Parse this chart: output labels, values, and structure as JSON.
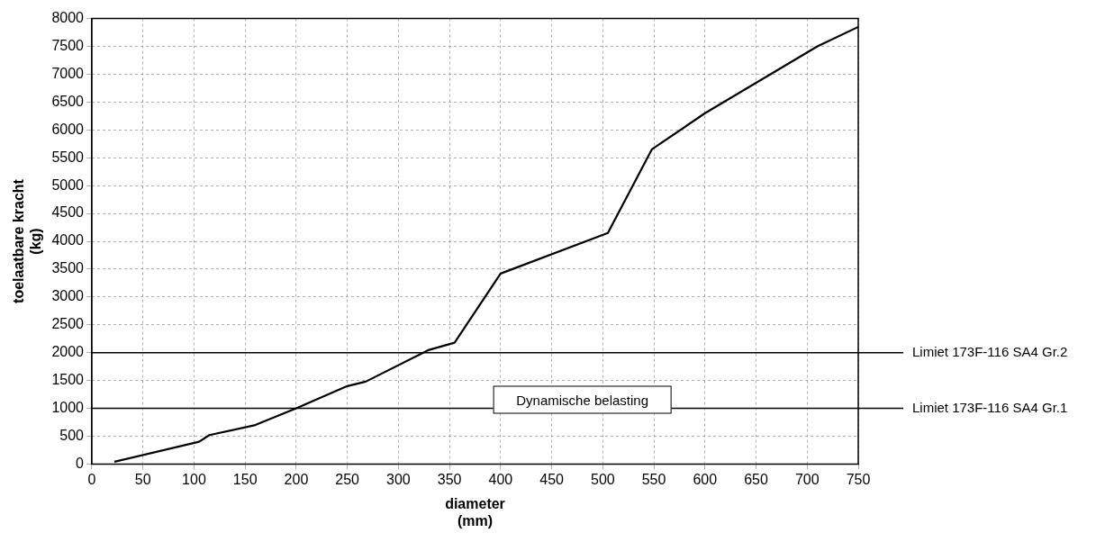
{
  "chart_data": {
    "type": "line",
    "xlabel": "diameter\n(mm)",
    "ylabel": "toelaatbare kracht\n(kg)",
    "series": [
      {
        "color": "#000000",
        "x": [
          22,
          105,
          115,
          160,
          200,
          250,
          268,
          330,
          355,
          400,
          505,
          548,
          600,
          710,
          750
        ],
        "values": [
          40,
          400,
          520,
          700,
          1000,
          1400,
          1480,
          2050,
          2180,
          3420,
          4150,
          5650,
          6300,
          7500,
          7850
        ]
      }
    ],
    "xlim": [
      0,
      750
    ],
    "xticks": [
      0,
      50,
      100,
      150,
      200,
      250,
      300,
      350,
      400,
      450,
      500,
      550,
      600,
      650,
      700,
      750
    ],
    "ylim": [
      0,
      8000
    ],
    "yticks": [
      0,
      500,
      1000,
      1500,
      2000,
      2500,
      3000,
      3500,
      4000,
      4500,
      5000,
      5500,
      6000,
      6500,
      7000,
      7500,
      8000
    ],
    "grid": true,
    "legend": false,
    "marker": "none",
    "line_style": "solid",
    "ref_lines": [
      {
        "axis": "y",
        "value": 2000,
        "label": "Limiet 173F-116 SA4 Gr.2",
        "color": "#000000"
      },
      {
        "axis": "y",
        "value": 1000,
        "label": "Limiet 173F-116 SA4 Gr.1",
        "color": "#000000"
      }
    ],
    "annotations": [
      "Dynamische belasting"
    ]
  }
}
